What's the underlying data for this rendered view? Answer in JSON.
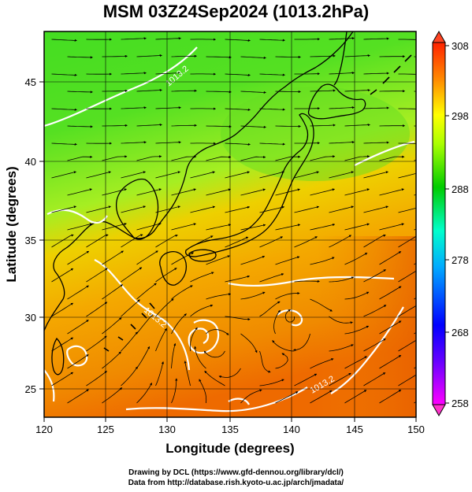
{
  "title": "MSM 03Z24Sep2024 (1013.2hPa)",
  "x_axis": {
    "label": "Longitude (degrees)",
    "ticks": [
      "120",
      "125",
      "130",
      "135",
      "140",
      "145",
      "150"
    ],
    "range": [
      120,
      150
    ]
  },
  "y_axis": {
    "label": "Latitude  (degrees)",
    "ticks": [
      "25",
      "30",
      "35",
      "40",
      "45"
    ],
    "range": [
      22.4,
      47.6
    ]
  },
  "colorbar": {
    "ticks": [
      "308",
      "298",
      "288",
      "278",
      "268",
      "258"
    ],
    "range": [
      258,
      308
    ],
    "colors": [
      "#ff00ff",
      "#0000ff",
      "#00aaff",
      "#00ffcc",
      "#00cc00",
      "#aaff00",
      "#ffff00",
      "#ff8800",
      "#ff2200"
    ]
  },
  "contour_labels": [
    "1013.2",
    "1013.2",
    "1013.2"
  ],
  "footer": {
    "line1": "Drawing by DCL (https://www.gfd-dennou.org/library/dcl/)",
    "line2": "Data from http://database.rish.kyoto-u.ac.jp/arch/jmadata/"
  }
}
